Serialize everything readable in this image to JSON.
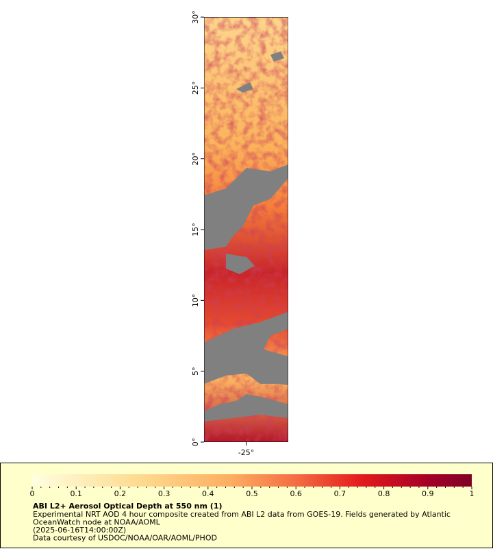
{
  "map": {
    "ylim": [
      0,
      30
    ],
    "yticks": [
      {
        "value": 0,
        "label": "0°"
      },
      {
        "value": 5,
        "label": "5°"
      },
      {
        "value": 10,
        "label": "10°"
      },
      {
        "value": 15,
        "label": "15°"
      },
      {
        "value": 20,
        "label": "20°"
      },
      {
        "value": 25,
        "label": "25°"
      },
      {
        "value": 30,
        "label": "30°"
      }
    ],
    "xlim": [
      -28,
      -22
    ],
    "xticks": [
      {
        "value": -25,
        "label": "-25°"
      }
    ]
  },
  "legend": {
    "ticks": [
      0,
      0.1,
      0.2,
      0.3,
      0.4,
      0.5,
      0.6,
      0.7,
      0.8,
      0.9,
      1
    ],
    "title": "ABI L2+ Aerosol Optical Depth at 550 nm (1)",
    "lines": [
      "Experimental NRT AOD 4 hour composite created from ABI L2 data from GOES-19. Fields generated by Atlantic",
      "OceanWatch node at NOAA/AOML",
      "(2025-06-16T14:00:00Z)",
      "Data courtesy of USDOC/NOAA/OAR/AOML/PHOD"
    ]
  }
}
